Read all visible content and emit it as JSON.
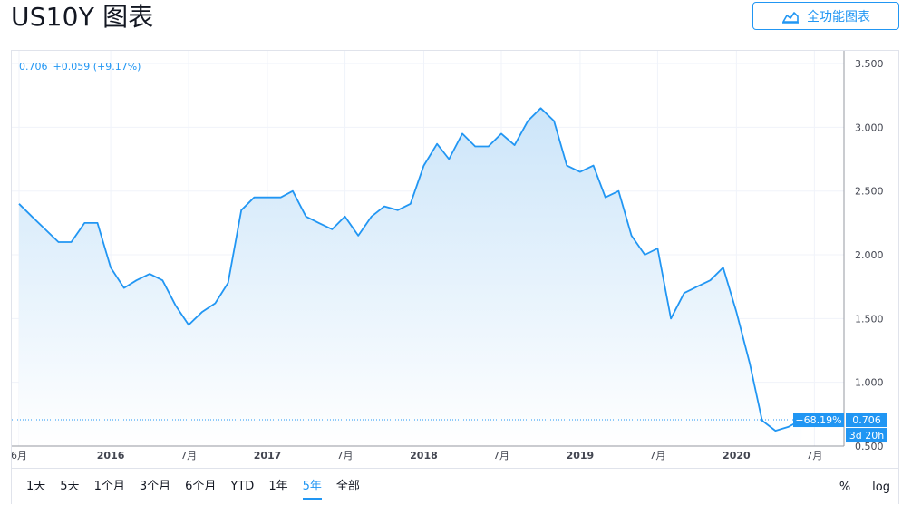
{
  "header": {
    "title": "US10Y 图表",
    "full_chart_button": "全功能图表",
    "full_chart_icon": "chart-area-icon"
  },
  "quote": {
    "price": "0.706",
    "change": "+0.059 (+9.17%)"
  },
  "badges": {
    "percent_change": "−68.19%",
    "last_price": "0.706",
    "countdown": "3d 20h"
  },
  "toolbar": {
    "ranges": [
      "1天",
      "5天",
      "1个月",
      "3个月",
      "6个月",
      "YTD",
      "1年",
      "5年",
      "全部"
    ],
    "active_range": "5年",
    "percent": "%",
    "log": "log"
  },
  "colors": {
    "line": "#2196f3",
    "fill_top": "#cce5f9",
    "fill_bottom": "#ffffff",
    "badge": "#2196f3",
    "grid": "#f0f3fa"
  },
  "chart_data": {
    "type": "area",
    "series_name": "US10Y",
    "ylim": [
      0.5,
      3.6
    ],
    "y_ticks": [
      3.5,
      3.0,
      2.5,
      2.0,
      1.5,
      1.0,
      0.5
    ],
    "y_tick_labels": [
      "3.500",
      "3.000",
      "2.500",
      "2.000",
      "1.500",
      "1.000",
      "0.500"
    ],
    "x_tick_labels": [
      {
        "label": "6月",
        "date": "2015-06"
      },
      {
        "label": "2016",
        "date": "2016-01"
      },
      {
        "label": "7月",
        "date": "2016-07"
      },
      {
        "label": "2017",
        "date": "2017-01"
      },
      {
        "label": "7月",
        "date": "2017-07"
      },
      {
        "label": "2018",
        "date": "2018-01"
      },
      {
        "label": "7月",
        "date": "2018-07"
      },
      {
        "label": "2019",
        "date": "2019-01"
      },
      {
        "label": "7月",
        "date": "2019-07"
      },
      {
        "label": "2020",
        "date": "2020-01"
      },
      {
        "label": "7月",
        "date": "2020-07"
      }
    ],
    "x": [
      "2015-06",
      "2015-07",
      "2015-08",
      "2015-09",
      "2015-10",
      "2015-11",
      "2015-12",
      "2016-01",
      "2016-02",
      "2016-03",
      "2016-04",
      "2016-05",
      "2016-06",
      "2016-07",
      "2016-08",
      "2016-09",
      "2016-10",
      "2016-11",
      "2016-12",
      "2017-01",
      "2017-02",
      "2017-03",
      "2017-04",
      "2017-05",
      "2017-06",
      "2017-07",
      "2017-08",
      "2017-09",
      "2017-10",
      "2017-11",
      "2017-12",
      "2018-01",
      "2018-02",
      "2018-03",
      "2018-04",
      "2018-05",
      "2018-06",
      "2018-07",
      "2018-08",
      "2018-09",
      "2018-10",
      "2018-11",
      "2018-12",
      "2019-01",
      "2019-02",
      "2019-03",
      "2019-04",
      "2019-05",
      "2019-06",
      "2019-07",
      "2019-08",
      "2019-09",
      "2019-10",
      "2019-11",
      "2019-12",
      "2020-01",
      "2020-02",
      "2020-03",
      "2020-04",
      "2020-05",
      "2020-06"
    ],
    "values": [
      2.4,
      2.3,
      2.2,
      2.1,
      2.1,
      2.25,
      2.25,
      1.9,
      1.74,
      1.8,
      1.85,
      1.8,
      1.6,
      1.45,
      1.55,
      1.62,
      1.78,
      2.35,
      2.45,
      2.45,
      2.45,
      2.5,
      2.3,
      2.25,
      2.2,
      2.3,
      2.15,
      2.3,
      2.38,
      2.35,
      2.4,
      2.7,
      2.87,
      2.75,
      2.95,
      2.85,
      2.85,
      2.95,
      2.86,
      3.05,
      3.15,
      3.05,
      2.7,
      2.65,
      2.7,
      2.45,
      2.5,
      2.15,
      2.0,
      2.05,
      1.5,
      1.7,
      1.75,
      1.8,
      1.9,
      1.55,
      1.15,
      0.7,
      0.62,
      0.65,
      0.706
    ]
  }
}
